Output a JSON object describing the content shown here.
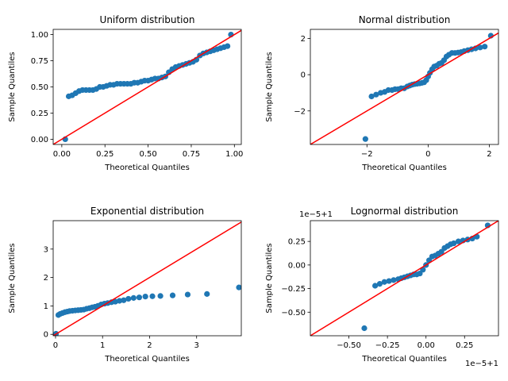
{
  "figure": {
    "background": "#ffffff"
  },
  "style": {
    "point_color": "#1f77b4",
    "line_color": "#ff0000"
  },
  "chart_data": [
    {
      "type": "scatter",
      "title": "Uniform distribution",
      "xlabel": "Theoretical Quantiles",
      "ylabel": "Sample Quantiles",
      "xlim": [
        -0.05,
        1.04
      ],
      "ylim": [
        -0.05,
        1.05
      ],
      "xticks": [
        0.0,
        0.25,
        0.5,
        0.75,
        1.0
      ],
      "xticklabels": [
        "0.00",
        "0.25",
        "0.50",
        "0.75",
        "1.00"
      ],
      "yticks": [
        0.0,
        0.25,
        0.5,
        0.75,
        1.0
      ],
      "yticklabels": [
        "0.00",
        "0.25",
        "0.50",
        "0.75",
        "1.00"
      ],
      "offset_x": "",
      "offset_y": "",
      "reference_line": [
        [
          -0.05,
          -0.05
        ],
        [
          1.04,
          1.04
        ]
      ],
      "points": {
        "x": [
          0.02,
          0.04,
          0.06,
          0.08,
          0.1,
          0.12,
          0.14,
          0.16,
          0.18,
          0.2,
          0.22,
          0.24,
          0.26,
          0.28,
          0.3,
          0.32,
          0.34,
          0.36,
          0.38,
          0.4,
          0.42,
          0.44,
          0.46,
          0.48,
          0.5,
          0.52,
          0.54,
          0.56,
          0.58,
          0.6,
          0.62,
          0.64,
          0.66,
          0.68,
          0.7,
          0.72,
          0.74,
          0.76,
          0.78,
          0.8,
          0.82,
          0.84,
          0.86,
          0.88,
          0.9,
          0.92,
          0.94,
          0.96,
          0.98
        ],
        "y": [
          0.0,
          0.41,
          0.42,
          0.44,
          0.46,
          0.47,
          0.47,
          0.47,
          0.47,
          0.48,
          0.5,
          0.5,
          0.51,
          0.52,
          0.52,
          0.53,
          0.53,
          0.53,
          0.53,
          0.53,
          0.54,
          0.54,
          0.55,
          0.56,
          0.56,
          0.57,
          0.58,
          0.58,
          0.59,
          0.6,
          0.64,
          0.67,
          0.69,
          0.7,
          0.71,
          0.72,
          0.73,
          0.74,
          0.76,
          0.8,
          0.82,
          0.83,
          0.84,
          0.85,
          0.86,
          0.87,
          0.88,
          0.89,
          1.0
        ]
      }
    },
    {
      "type": "scatter",
      "title": "Normal distribution",
      "xlabel": "Theoretical Quantiles",
      "ylabel": "Sample Quantiles",
      "xlim": [
        -3.85,
        2.3
      ],
      "ylim": [
        -3.85,
        2.5
      ],
      "xticks": [
        -2,
        0,
        2
      ],
      "xticklabels": [
        "−2",
        "0",
        "2"
      ],
      "yticks": [
        -2,
        0,
        2
      ],
      "yticklabels": [
        "−2",
        "0",
        "2"
      ],
      "offset_x": "",
      "offset_y": "",
      "reference_line": [
        [
          -3.85,
          -3.85
        ],
        [
          2.3,
          2.3
        ]
      ],
      "points": {
        "x": [
          -2.05,
          -1.85,
          -1.7,
          -1.55,
          -1.42,
          -1.3,
          -1.18,
          -1.08,
          -0.98,
          -0.88,
          -0.78,
          -0.68,
          -0.6,
          -0.52,
          -0.44,
          -0.36,
          -0.28,
          -0.2,
          -0.13,
          -0.06,
          0.0,
          0.06,
          0.13,
          0.2,
          0.28,
          0.36,
          0.44,
          0.52,
          0.6,
          0.68,
          0.78,
          0.88,
          0.98,
          1.08,
          1.18,
          1.3,
          1.42,
          1.55,
          1.7,
          1.85,
          2.05
        ],
        "y": [
          -3.55,
          -1.2,
          -1.1,
          -1.0,
          -0.95,
          -0.85,
          -0.85,
          -0.8,
          -0.8,
          -0.75,
          -0.75,
          -0.65,
          -0.6,
          -0.55,
          -0.52,
          -0.5,
          -0.48,
          -0.45,
          -0.42,
          -0.3,
          -0.1,
          0.1,
          0.3,
          0.45,
          0.5,
          0.6,
          0.65,
          0.8,
          1.0,
          1.1,
          1.2,
          1.2,
          1.22,
          1.25,
          1.3,
          1.35,
          1.4,
          1.45,
          1.5,
          1.55,
          2.15
        ]
      }
    },
    {
      "type": "scatter",
      "title": "Exponential distribution",
      "xlabel": "Theoretical Quantiles",
      "ylabel": "Sample Quantiles",
      "xlim": [
        -0.05,
        3.95
      ],
      "ylim": [
        -0.05,
        4.0
      ],
      "xticks": [
        0,
        1,
        2,
        3
      ],
      "xticklabels": [
        "0",
        "1",
        "2",
        "3"
      ],
      "yticks": [
        0,
        1,
        2,
        3
      ],
      "yticklabels": [
        "0",
        "1",
        "2",
        "3"
      ],
      "offset_x": "",
      "offset_y": "",
      "reference_line": [
        [
          -0.05,
          -0.05
        ],
        [
          3.95,
          3.95
        ]
      ],
      "points": {
        "x": [
          0.01,
          0.06,
          0.1,
          0.15,
          0.2,
          0.25,
          0.3,
          0.36,
          0.42,
          0.48,
          0.54,
          0.6,
          0.66,
          0.72,
          0.78,
          0.84,
          0.9,
          0.97,
          1.04,
          1.11,
          1.19,
          1.27,
          1.36,
          1.45,
          1.55,
          1.66,
          1.78,
          1.91,
          2.06,
          2.23,
          2.49,
          2.81,
          3.22,
          3.9
        ],
        "y": [
          0.02,
          0.68,
          0.72,
          0.75,
          0.78,
          0.8,
          0.82,
          0.83,
          0.84,
          0.85,
          0.86,
          0.87,
          0.9,
          0.92,
          0.95,
          0.97,
          1.0,
          1.05,
          1.08,
          1.1,
          1.13,
          1.15,
          1.18,
          1.2,
          1.25,
          1.28,
          1.3,
          1.33,
          1.34,
          1.35,
          1.37,
          1.4,
          1.42,
          1.65
        ]
      }
    },
    {
      "type": "scatter",
      "title": "Lognormal distribution",
      "xlabel": "Theoretical Quantiles",
      "ylabel": "Sample Quantiles",
      "xlim": [
        -0.75,
        0.47
      ],
      "ylim": [
        -0.75,
        0.47
      ],
      "xticks": [
        -0.5,
        -0.25,
        0.0,
        0.25
      ],
      "xticklabels": [
        "−0.50",
        "−0.25",
        "0.00",
        "0.25"
      ],
      "yticks": [
        -0.5,
        -0.25,
        0.0,
        0.25
      ],
      "yticklabels": [
        "−0.50",
        "−0.25",
        "0.00",
        "0.25"
      ],
      "offset_x": "1e−5+1",
      "offset_y": "1e−5+1",
      "reference_line": [
        [
          -0.75,
          -0.75
        ],
        [
          0.47,
          0.47
        ]
      ],
      "points": {
        "x": [
          -0.4,
          -0.33,
          -0.3,
          -0.27,
          -0.24,
          -0.21,
          -0.18,
          -0.16,
          -0.14,
          -0.12,
          -0.1,
          -0.08,
          -0.06,
          -0.04,
          -0.02,
          0.0,
          0.02,
          0.04,
          0.06,
          0.08,
          0.1,
          0.12,
          0.14,
          0.16,
          0.18,
          0.21,
          0.24,
          0.27,
          0.3,
          0.33,
          0.4
        ],
        "y": [
          -0.67,
          -0.22,
          -0.2,
          -0.18,
          -0.17,
          -0.16,
          -0.15,
          -0.14,
          -0.13,
          -0.12,
          -0.11,
          -0.1,
          -0.1,
          -0.09,
          -0.05,
          0.0,
          0.05,
          0.09,
          0.1,
          0.12,
          0.14,
          0.18,
          0.2,
          0.22,
          0.23,
          0.25,
          0.26,
          0.27,
          0.28,
          0.3,
          0.42
        ]
      }
    }
  ]
}
